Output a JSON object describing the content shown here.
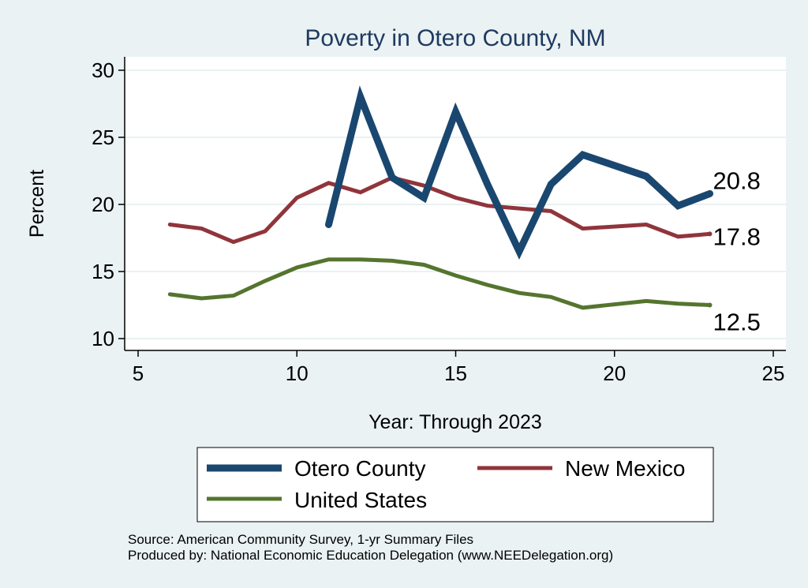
{
  "chart_data": {
    "type": "line",
    "title": "Poverty in Otero County, NM",
    "xlabel": "Year: Through 2023",
    "ylabel": "Percent",
    "xlim": [
      5,
      25
    ],
    "ylim": [
      10,
      30
    ],
    "xticks": [
      "5",
      "10",
      "15",
      "20",
      "25"
    ],
    "yticks": [
      "10",
      "15",
      "20",
      "25",
      "30"
    ],
    "series": [
      {
        "name": "Otero County",
        "color": "#1a476f",
        "x": [
          11,
          12,
          13,
          14,
          15,
          16,
          17,
          18,
          19,
          21,
          22,
          23
        ],
        "y": [
          18.5,
          28.0,
          22.0,
          20.5,
          26.9,
          21.5,
          16.5,
          21.5,
          23.7,
          22.1,
          19.9,
          20.8
        ],
        "end_label": "20.8"
      },
      {
        "name": "New Mexico",
        "color": "#90353b",
        "x": [
          6,
          7,
          8,
          9,
          10,
          11,
          12,
          13,
          14,
          15,
          16,
          17,
          18,
          19,
          21,
          22,
          23
        ],
        "y": [
          18.5,
          18.2,
          17.2,
          18.0,
          20.5,
          21.6,
          20.9,
          22.0,
          21.4,
          20.5,
          19.9,
          19.7,
          19.5,
          18.2,
          18.5,
          17.6,
          17.8
        ],
        "end_label": "17.8"
      },
      {
        "name": "United States",
        "color": "#55752f",
        "x": [
          6,
          7,
          8,
          9,
          10,
          11,
          12,
          13,
          14,
          15,
          16,
          17,
          18,
          19,
          21,
          22,
          23
        ],
        "y": [
          13.3,
          13.0,
          13.2,
          14.3,
          15.3,
          15.9,
          15.9,
          15.8,
          15.5,
          14.7,
          14.0,
          13.4,
          13.1,
          12.3,
          12.8,
          12.6,
          12.5
        ],
        "end_label": "12.5"
      }
    ],
    "legend": [
      "Otero County",
      "New Mexico",
      "United States"
    ],
    "legend_position": "bottom",
    "grid": true
  },
  "notes": {
    "source": "Source: American Community Survey, 1-yr Summary Files",
    "produced": "Produced by: National Economic Education Delegation (www.NEEDelegation.org)"
  },
  "colors": {
    "background": "#eaf2f3",
    "plot_background": "#ffffff",
    "title": "#1f3a60"
  }
}
